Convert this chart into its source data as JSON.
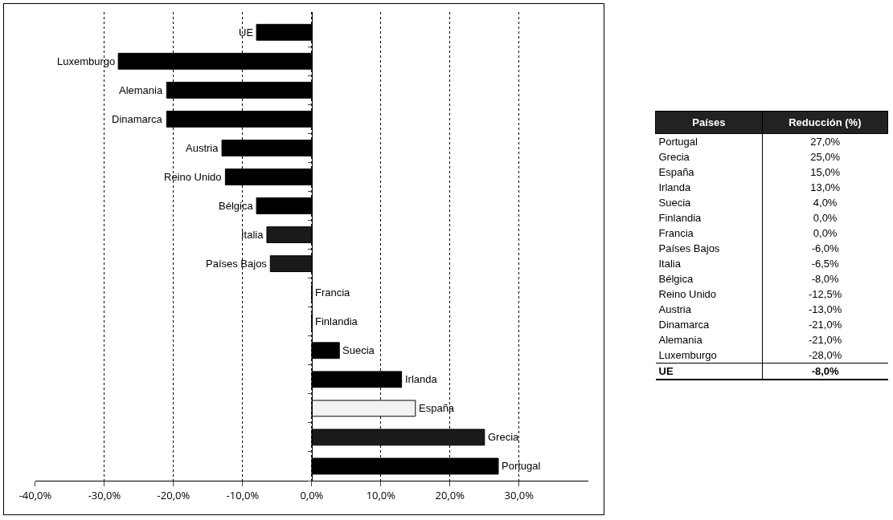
{
  "chart_data": [
    {
      "type": "bar",
      "orientation": "horizontal",
      "categories": [
        "UE",
        "Luxemburgo",
        "Alemania",
        "Dinamarca",
        "Austria",
        "Reino Unido",
        "Bélgica",
        "Italia",
        "Países Bajos",
        "Francia",
        "Finlandia",
        "Suecia",
        "Irlanda",
        "España",
        "Grecia",
        "Portugal"
      ],
      "values": [
        -8,
        -28,
        -21,
        -21,
        -13,
        -12.5,
        -8,
        -6.5,
        -6,
        0,
        0,
        4,
        13,
        15,
        25,
        27
      ],
      "colors": [
        "#000000",
        "#000000",
        "#000000",
        "#000000",
        "#000000",
        "#000000",
        "#000000",
        "#1a1a1a",
        "#1a1a1a",
        "#000000",
        "#000000",
        "#000000",
        "#000000",
        "#f2f2f2",
        "#1a1a1a",
        "#000000"
      ],
      "xlim": [
        -40,
        40
      ],
      "xticks": [
        {
          "value": -40,
          "label": "-40,0%"
        },
        {
          "value": -30,
          "label": "-30,0%"
        },
        {
          "value": -20,
          "label": "-20,0%"
        },
        {
          "value": -10,
          "label": "-10,0%"
        },
        {
          "value": 0,
          "label": "0,0%"
        },
        {
          "value": 10,
          "label": "10,0%"
        },
        {
          "value": 20,
          "label": "20,0%"
        },
        {
          "value": 30,
          "label": "30,0%"
        }
      ],
      "grid": "x"
    },
    {
      "type": "other",
      "annotations": [
        "Países",
        "Reducción (%)"
      ],
      "categories": [
        "Portugal",
        "Grecia",
        "España",
        "Irlanda",
        "Suecia",
        "Finlandia",
        "Francia",
        "Países Bajos",
        "Italia",
        "Bélgica",
        "Reino Unido",
        "Austria",
        "Dinamarca",
        "Alemania",
        "Luxemburgo",
        "UE"
      ],
      "value_labels": [
        "27,0%",
        "25,0%",
        "15,0%",
        "13,0%",
        "4,0%",
        "0,0%",
        "0,0%",
        "-6,0%",
        "-6,5%",
        "-8,0%",
        "-12,5%",
        "-13,0%",
        "-21,0%",
        "-21,0%",
        "-28,0%",
        "-8,0%"
      ]
    }
  ]
}
